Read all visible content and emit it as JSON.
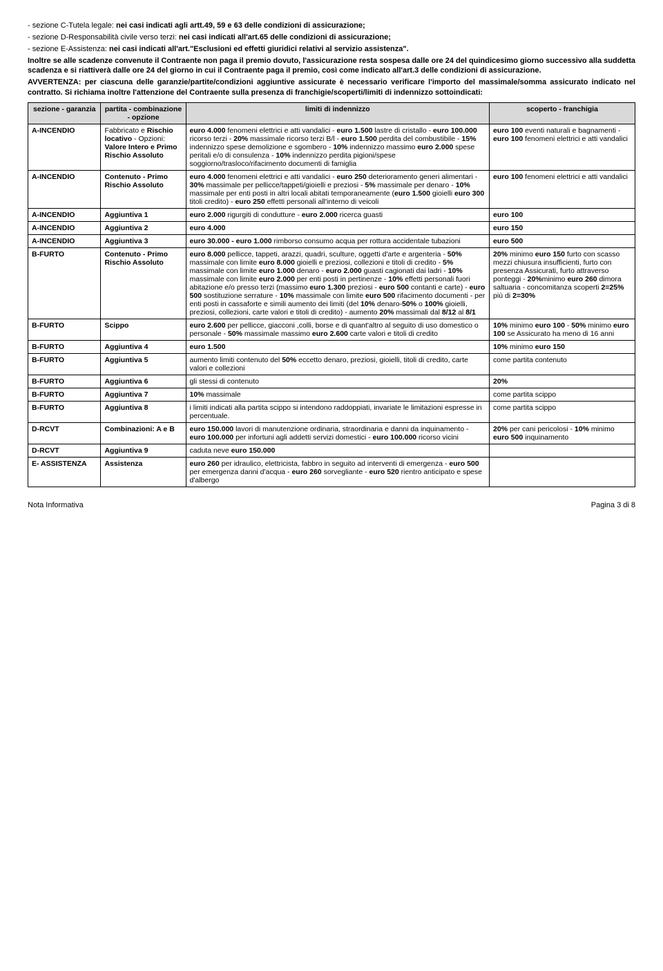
{
  "intro": {
    "line1a": "- sezione C-Tutela legale: ",
    "line1b": "nei casi indicati agli artt.49, 59 e 63 delle condizioni di assicurazione;",
    "line2a": "- sezione D-Responsabilità civile verso terzi: ",
    "line2b": "nei casi indicati all'art.65 delle condizioni di assicurazione;",
    "line3a": "- sezione E-Assistenza: ",
    "line3b": "nei casi indicati all'art.\"Esclusioni ed effetti giuridici relativi al servizio assistenza\".",
    "block1": "Inoltre se alle scadenze convenute il Contraente non paga il premio dovuto, l'assicurazione resta sospesa dalle ore 24 del quindicesimo giorno successivo alla suddetta scadenza e si riattiverà dalle ore 24 del giorno in cui il Contraente paga il premio, così come indicato all'art.3 delle condizioni di assicurazione.",
    "block2": "AVVERTENZA: per ciascuna delle garanzie/partite/condizioni aggiuntive assicurate è necessario verificare l'importo del massimale/somma assicurato indicato nel contratto. Si richiama inoltre l'attenzione del Contraente sulla presenza di franchigie/scoperti/limiti di indennizzo sottoindicati:"
  },
  "headers": {
    "c1": "sezione - garanzia",
    "c2": "partita - combinazione - opzione",
    "c3": "limiti di indennizzo",
    "c4": "scoperto - franchigia"
  },
  "rows": [
    {
      "sez": "A-INCENDIO",
      "part": "Fabbricato e <b>Rischio locativo</b> - Opzioni: <b>Valore Intero e Primo Rischio Assoluto</b>",
      "lim": "<b>euro 4.000</b> fenomeni elettrici e atti vandalici - <b>euro 1.500</b> lastre di cristallo - <b>euro 100.000</b> ricorso terzi -  <b>20%</b> massimale ricorso terzi B/l - <b>euro 1.500</b> perdita del combustibile - <b>15%</b> indennizzo spese demolizione e sgombero - <b>10%</b> indennizzo massimo <b>euro 2.000</b> spese peritali e/o di consulenza - <b>10%</b> indennizzo perdita pigioni/spese soggiorno/trasloco/rifacimento documenti di famiglia",
      "scop": "<b>euro 100</b> eventi naturali e bagnamenti - <b>euro 100</b> fenomeni elettrici e atti vandalici"
    },
    {
      "sez": "A-INCENDIO",
      "part": "<b>Contenuto - Primo Rischio Assoluto</b>",
      "lim": "<b>euro 4.000</b> fenomeni elettrici e atti vandalici - <b>euro 250</b> deterioramento generi alimentari - <b>30%</b> massimale per pellicce/tappeti/gioielli e preziosi - <b>5%</b> massimale per denaro - <b>10%</b> massimale per enti posti in altri locali abitati temporaneamente (<b>euro 1.500</b> gioielli <b>euro 300</b> titoli credito) - <b>euro 250</b> effetti personali all'interno di veicoli",
      "scop": "<b>euro 100</b> fenomeni elettrici e atti vandalici"
    },
    {
      "sez": "A-INCENDIO",
      "part": "<b>Aggiuntiva 1</b>",
      "lim": "<b>euro 2.000</b>  rigurgiti di condutture - <b>euro 2.000</b> ricerca guasti",
      "scop": "<b>euro 100</b>"
    },
    {
      "sez": "A-INCENDIO",
      "part": "<b>Aggiuntiva 2</b>",
      "lim": "<b>euro 4.000</b>",
      "scop": "<b>euro 150</b>"
    },
    {
      "sez": "A-INCENDIO",
      "part": "<b>Aggiuntiva 3</b>",
      "lim": "<b>euro 30.000 - euro 1.000</b> rimborso consumo acqua per rottura accidentale tubazioni",
      "scop": "<b>euro 500</b>"
    },
    {
      "sez": "B-FURTO",
      "part": "<b>Contenuto  - Primo Rischio Assoluto</b>",
      "lim": "<b>euro 8.000</b> pellicce, tappeti, arazzi, quadri, sculture, oggetti d'arte e argenteria - <b>50%</b> massimale con limite <b>euro 8.000</b> gioielli e preziosi, collezioni e titoli di credito - <b>5%</b> massimale con limite <b>euro 1.000</b> denaro - <b>euro 2.000</b> guasti cagionati dai ladri - <b>10%</b> massimale con limite <b>euro 2.000</b> per enti posti in pertinenze - <b>10%</b> effetti personali fuori abitazione e/o presso terzi (massimo <b>euro 1.300</b> preziosi - <b>euro 500</b> contanti e carte) - <b>euro 500</b> sostituzione serrature - <b>10%</b> massimale con limite <b>euro 500</b> rifacimento documenti - per enti posti in cassaforte e simili aumento dei limiti (del <b>10%</b> denaro-<b>50%</b> o <b>100%</b> gioielli, preziosi, collezioni, carte valori e titoli di credito) - aumento <b>20%</b> massimali dal <b>8/12</b> al <b>8/1</b>",
      "scop": "<b>20%</b> minimo <b>euro 150</b> furto con scasso mezzi chiusura insufficienti, furto con presenza Assicurati, furto attraverso ponteggi - <b>20%</b>minimo <b>euro 260</b> dimora saltuaria - concomitanza scoperti <b>2=25%</b>   più di <b>2=30%</b>"
    },
    {
      "sez": "B-FURTO",
      "part": "<b>Scippo</b>",
      "lim": "<b>euro 2.600</b> per pellicce, giacconi ,colli, borse e di quant'altro al seguito di uso domestico o personale - <b>50%</b> massimale massimo <b>euro 2.600</b> carte valori e titoli di credito",
      "scop": "<b>10%</b> minimo <b>euro 100</b> - <b>50%</b> minimo <b>euro 100</b> se Assicurato ha meno di 16 anni"
    },
    {
      "sez": "B-FURTO",
      "part": "<b>Aggiuntiva 4</b>",
      "lim": "<b>euro 1.500</b>",
      "scop": "<b>10%</b> minimo <b>euro 150</b>"
    },
    {
      "sez": "B-FURTO",
      "part": "<b>Aggiuntiva 5</b>",
      "lim": "aumento limiti contenuto del <b>50%</b> eccetto denaro, preziosi, gioielli, titoli di credito, carte valori e collezioni",
      "scop": "come partita contenuto"
    },
    {
      "sez": "B-FURTO",
      "part": "<b>Aggiuntiva 6</b>",
      "lim": "gli stessi di contenuto",
      "scop": "<b>20%</b>"
    },
    {
      "sez": "B-FURTO",
      "part": "<b>Aggiuntiva 7</b>",
      "lim": "<b>10%</b> massimale",
      "scop": "come partita scippo"
    },
    {
      "sez": "B-FURTO",
      "part": "<b>Aggiuntiva 8</b>",
      "lim": "i limiti indicati alla partita scippo si intendono raddoppiati, invariate le limitazioni espresse in percentuale.",
      "scop": "come partita scippo"
    },
    {
      "sez": "D-RCVT",
      "part": "<b>Combinazioni: A e B</b>",
      "lim": "<b>euro 150.000</b> lavori di manutenzione ordinaria, straordinaria e danni da inquinamento - <b>euro 100.000</b> per infortuni agli addetti servizi domestici - <b>euro 100.000</b> ricorso vicini",
      "scop": "<b>20%</b> per cani pericolosi - <b>10%</b> minimo <b>euro 500</b> inquinamento"
    },
    {
      "sez": "D-RCVT",
      "part": "<b>Aggiuntiva 9</b>",
      "lim": "caduta neve <b>euro 150.000</b>",
      "scop": ""
    },
    {
      "sez": "E- ASSISTENZA",
      "part": "<b>Assistenza</b>",
      "lim": "<b>euro 260</b> per idraulico, elettricista, fabbro in seguito ad interventi di emergenza - <b>euro 500</b> per emergenza danni d'acqua - <b>euro 260</b> sorvegliante - <b>euro 520</b> rientro anticipato e spese d'albergo",
      "scop": ""
    }
  ],
  "footer": {
    "left": "Nota Informativa",
    "right": "Pagina 3 di  8"
  }
}
